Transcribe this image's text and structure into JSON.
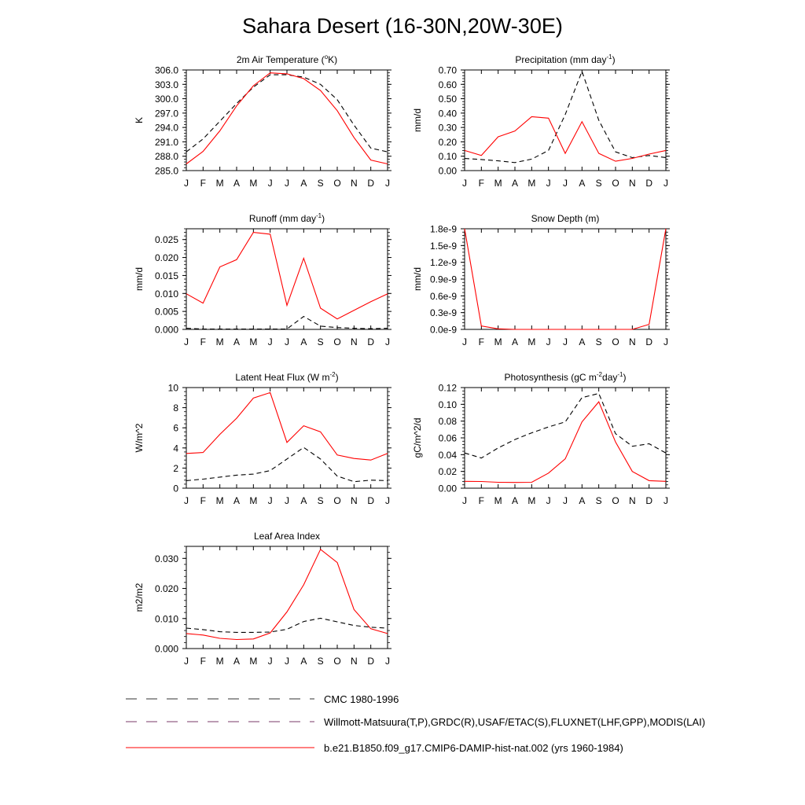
{
  "title": "Sahara Desert (16-30N,20W-30E)",
  "months": [
    "J",
    "F",
    "M",
    "A",
    "M",
    "J",
    "J",
    "A",
    "S",
    "O",
    "N",
    "D",
    "J"
  ],
  "legend": {
    "items": [
      {
        "label": "CMC 1980-1996",
        "style": "dash",
        "color": "#000000"
      },
      {
        "label": "Willmott-Matsuura(T,P),GRDC(R),USAF/ETAC(S),FLUXNET(LHF,GPP),MODIS(LAI)",
        "style": "dash",
        "color": "#000000"
      },
      {
        "label": "b.e21.B1850.f09_g17.CMIP6-DAMIP-hist-nat.002 (yrs 1960-1984)",
        "style": "solid",
        "color": "#ff0000"
      }
    ]
  },
  "chart_data": [
    {
      "type": "line",
      "title": "2m Air Temperature (°K)",
      "title_parts": [
        "2m Air Temperature (",
        "o",
        "K)"
      ],
      "ylabel": "K",
      "ylim": [
        285.0,
        306.0
      ],
      "yticks": [
        "285.0",
        "288.0",
        "291.0",
        "294.0",
        "297.0",
        "300.0",
        "303.0",
        "306.0"
      ],
      "ytick_values": [
        285,
        288,
        291,
        294,
        297,
        300,
        303,
        306
      ],
      "series": [
        {
          "style": "dash",
          "color": "#000000",
          "values": [
            288.9,
            291.6,
            295.3,
            299.0,
            302.4,
            305.0,
            305.0,
            304.5,
            303.0,
            299.8,
            294.5,
            289.7,
            288.9
          ]
        },
        {
          "style": "solid",
          "color": "#ff0000",
          "values": [
            286.4,
            289.0,
            293.3,
            298.5,
            302.7,
            305.4,
            305.2,
            304.2,
            301.7,
            297.5,
            291.9,
            287.2,
            286.4
          ]
        }
      ]
    },
    {
      "type": "line",
      "title": "Precipitation (mm day-1)",
      "title_parts": [
        "Precipitation (mm day",
        "-1",
        ")"
      ],
      "ylabel": "mm/d",
      "ylim": [
        0.0,
        0.7
      ],
      "yticks": [
        "0.00",
        "0.10",
        "0.20",
        "0.30",
        "0.40",
        "0.50",
        "0.60",
        "0.70"
      ],
      "ytick_values": [
        0,
        0.1,
        0.2,
        0.3,
        0.4,
        0.5,
        0.6,
        0.7
      ],
      "series": [
        {
          "style": "dash",
          "color": "#000000",
          "values": [
            0.084,
            0.077,
            0.068,
            0.056,
            0.08,
            0.14,
            0.39,
            0.69,
            0.35,
            0.13,
            0.09,
            0.105,
            0.09
          ]
        },
        {
          "style": "solid",
          "color": "#ff0000",
          "values": [
            0.14,
            0.105,
            0.235,
            0.275,
            0.375,
            0.365,
            0.12,
            0.34,
            0.12,
            0.065,
            0.085,
            0.115,
            0.14
          ]
        }
      ]
    },
    {
      "type": "line",
      "title": "Runoff (mm day-1)",
      "title_parts": [
        "Runoff (mm day",
        "-1",
        ")"
      ],
      "ylabel": "mm/d",
      "ylim": [
        0.0,
        0.028
      ],
      "yticks": [
        "0.000",
        "0.005",
        "0.010",
        "0.015",
        "0.020",
        "0.025"
      ],
      "ytick_values": [
        0,
        0.005,
        0.01,
        0.015,
        0.02,
        0.025
      ],
      "series": [
        {
          "style": "dash",
          "color": "#000000",
          "values": [
            0.0003,
            0.0001,
            0.0001,
            0.0001,
            0.0001,
            0.0001,
            0.0001,
            0.0036,
            0.0009,
            0.0005,
            0.0003,
            0.0002,
            0.0003
          ]
        },
        {
          "style": "solid",
          "color": "#ff0000",
          "values": [
            0.0099,
            0.0073,
            0.0174,
            0.0194,
            0.027,
            0.0265,
            0.0067,
            0.0198,
            0.0059,
            0.0029,
            0.0053,
            0.0077,
            0.0099
          ]
        }
      ]
    },
    {
      "type": "line",
      "title": "Snow Depth (m)",
      "title_parts": [
        "Snow Depth (m)"
      ],
      "ylabel": "mm/d",
      "ylim": [
        0.0,
        1.8
      ],
      "yticks": [
        "0.0e-9",
        "0.3e-9",
        "0.6e-9",
        "0.9e-9",
        "1.2e-9",
        "1.5e-9",
        "1.8e-9"
      ],
      "ytick_values": [
        0,
        0.3,
        0.6,
        0.9,
        1.2,
        1.5,
        1.8
      ],
      "series": [
        {
          "style": "dash",
          "color": "#000000",
          "values": [
            0.0,
            0.0,
            0.0,
            0.0,
            0.0,
            0.0,
            0.0,
            0.0,
            0.0,
            0.0,
            0.0,
            0.0,
            0.0
          ]
        },
        {
          "style": "solid",
          "color": "#ff0000",
          "values": [
            1.8,
            0.06,
            0.01,
            0.0,
            0.0,
            0.0,
            0.0,
            0.0,
            0.0,
            0.0,
            0.0,
            0.09,
            1.8
          ]
        }
      ]
    },
    {
      "type": "line",
      "title": "Latent Heat Flux (W m-2)",
      "title_parts": [
        "Latent Heat Flux (W m",
        "-2",
        ")"
      ],
      "ylabel": "W/m^2",
      "ylim": [
        0,
        10
      ],
      "yticks": [
        "0",
        "2",
        "4",
        "6",
        "8",
        "10"
      ],
      "ytick_values": [
        0,
        2,
        4,
        6,
        8,
        10
      ],
      "series": [
        {
          "style": "dash",
          "color": "#000000",
          "values": [
            0.75,
            0.9,
            1.1,
            1.3,
            1.4,
            1.75,
            2.9,
            4.05,
            2.9,
            1.2,
            0.65,
            0.8,
            0.75
          ]
        },
        {
          "style": "solid",
          "color": "#ff0000",
          "values": [
            3.45,
            3.55,
            5.35,
            6.95,
            8.95,
            9.5,
            4.55,
            6.2,
            5.6,
            3.3,
            2.95,
            2.8,
            3.45
          ]
        }
      ]
    },
    {
      "type": "line",
      "title": "Photosynthesis (gC m-2day-1)",
      "title_parts": [
        "Photosynthesis (gC m",
        "-2",
        "day",
        "-1",
        ")"
      ],
      "ylabel": "gC/m^2/d",
      "ylim": [
        0.0,
        0.12
      ],
      "yticks": [
        "0.00",
        "0.02",
        "0.04",
        "0.06",
        "0.08",
        "0.10",
        "0.12"
      ],
      "ytick_values": [
        0,
        0.02,
        0.04,
        0.06,
        0.08,
        0.1,
        0.12
      ],
      "series": [
        {
          "style": "dash",
          "color": "#000000",
          "values": [
            0.042,
            0.036,
            0.048,
            0.058,
            0.066,
            0.073,
            0.079,
            0.108,
            0.113,
            0.065,
            0.05,
            0.053,
            0.042
          ]
        },
        {
          "style": "solid",
          "color": "#ff0000",
          "values": [
            0.0082,
            0.008,
            0.007,
            0.0068,
            0.007,
            0.018,
            0.035,
            0.079,
            0.103,
            0.055,
            0.02,
            0.009,
            0.0082
          ]
        }
      ]
    },
    {
      "type": "line",
      "title": "Leaf Area Index",
      "title_parts": [
        "Leaf Area Index"
      ],
      "ylabel": "m2/m2",
      "ylim": [
        0.0,
        0.034
      ],
      "yticks": [
        "0.000",
        "0.010",
        "0.020",
        "0.030"
      ],
      "ytick_values": [
        0,
        0.01,
        0.02,
        0.03
      ],
      "series": [
        {
          "style": "dash",
          "color": "#000000",
          "values": [
            0.0068,
            0.0063,
            0.0056,
            0.0054,
            0.0054,
            0.0055,
            0.0064,
            0.009,
            0.0101,
            0.0089,
            0.0077,
            0.0071,
            0.0068
          ]
        },
        {
          "style": "solid",
          "color": "#ff0000",
          "values": [
            0.005,
            0.0045,
            0.0034,
            0.003,
            0.0032,
            0.0052,
            0.0122,
            0.0212,
            0.033,
            0.0286,
            0.013,
            0.0066,
            0.005
          ]
        }
      ]
    }
  ]
}
